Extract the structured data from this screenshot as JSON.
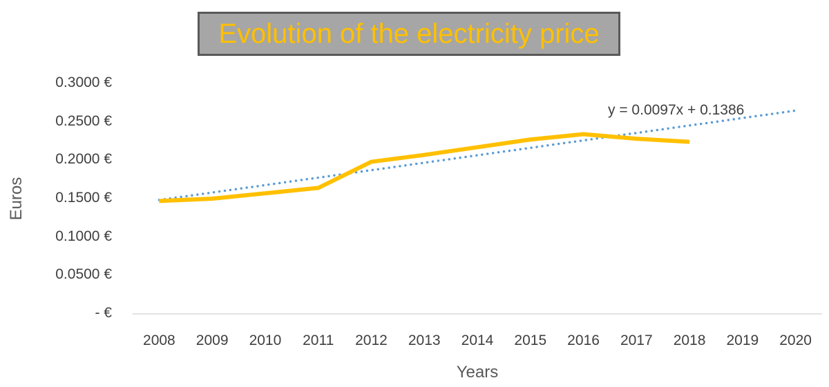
{
  "chart_data": {
    "type": "line",
    "title": "Evolution of the electricity price",
    "xlabel": "Years",
    "ylabel": "Euros",
    "categories": [
      "2008",
      "2009",
      "2010",
      "2011",
      "2012",
      "2013",
      "2014",
      "2015",
      "2016",
      "2017",
      "2018",
      "2019",
      "2020"
    ],
    "ylim": [
      0,
      0.3
    ],
    "yticks": [
      0.3,
      0.25,
      0.2,
      0.15,
      0.1,
      0.05,
      0
    ],
    "ytick_labels": [
      "0.3000 €",
      "0.2500 €",
      "0.2000 €",
      "0.1500 €",
      "0.1000 €",
      "0.0500 €",
      "-   €"
    ],
    "series": [
      {
        "values": [
          0.147,
          0.15,
          0.157,
          0.164,
          0.198,
          0.207,
          0.217,
          0.227,
          0.234,
          0.228,
          0.224,
          null,
          null
        ],
        "color": "#ffc000",
        "style": "solid"
      },
      {
        "kind": "linear-trendline",
        "slope": 0.0097,
        "intercept": 0.1386,
        "color": "#5b9bd5",
        "style": "dotted"
      }
    ],
    "trendline_equation": "y = 0.0097x + 0.1386",
    "grid": false,
    "legend": "none"
  },
  "colors": {
    "title_text": "#ffc000",
    "title_background": "#a6a6a6",
    "title_border": "#595959",
    "axis_line": "#d9d9d9"
  }
}
